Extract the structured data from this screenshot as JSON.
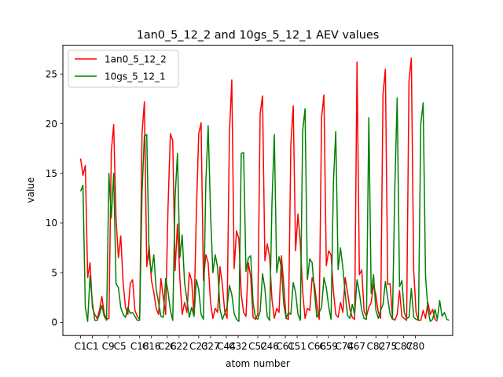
{
  "chart_data": {
    "type": "line",
    "title": "1an0_5_12_2 and 10gs_5_12_1 AEV values",
    "xlabel": "atom number",
    "ylabel": "value",
    "xlim": [
      -4.5,
      94.5
    ],
    "ylim": [
      -1.33,
      27.9
    ],
    "yticks": [
      0,
      5,
      10,
      15,
      20,
      25
    ],
    "xtick_labels": [
      "C1",
      "C1",
      "C9",
      "C5",
      "C18",
      "C16",
      "C26",
      "C22",
      "C23",
      "C27",
      "C44",
      "C32",
      "C52",
      "C46",
      "C61",
      "C51",
      "C66",
      "C59",
      "C74",
      "C67",
      "C82",
      "C75",
      "C87",
      "C80"
    ],
    "xtick_positions": [
      0,
      3,
      7,
      10,
      15,
      18,
      22,
      25,
      30,
      33,
      37,
      40,
      45,
      48,
      52,
      55,
      60,
      63,
      67,
      70,
      75,
      78,
      82,
      85
    ],
    "legend_position": "upper left",
    "grid": false,
    "series": [
      {
        "name": "1an0_5_12_2",
        "color": "#ff0000",
        "values": [
          16.5,
          14.8,
          15.8,
          4.5,
          6.0,
          1.5,
          0.8,
          0.4,
          1.2,
          2.6,
          0.9,
          0.3,
          0.4,
          17.2,
          19.9,
          10.5,
          6.5,
          8.7,
          4.0,
          1.5,
          0.8,
          3.9,
          4.3,
          1.2,
          0.6,
          0.3,
          19.0,
          22.2,
          5.6,
          7.7,
          4.2,
          3.0,
          1.4,
          0.8,
          4.4,
          2.5,
          0.8,
          11.5,
          19.0,
          18.3,
          5.2,
          9.9,
          4.5,
          0.8,
          2.0,
          1.0,
          5.0,
          4.2,
          0.6,
          11.0,
          19.0,
          20.1,
          4.2,
          6.8,
          6.0,
          2.0,
          0.4,
          1.4,
          1.0,
          5.6,
          3.8,
          1.1,
          0.4,
          19.1,
          24.4,
          5.4,
          9.2,
          8.4,
          2.8,
          1.0,
          0.6,
          6.0,
          4.6,
          0.5,
          0.3,
          0.8,
          21.0,
          22.8,
          6.2,
          7.9,
          6.6,
          2.3,
          0.4,
          1.4,
          1.0,
          6.7,
          3.8,
          0.4,
          0.3,
          18.0,
          21.8,
          7.2,
          10.9,
          8.0,
          3.1,
          0.4,
          1.4,
          1.2,
          4.5,
          3.8,
          1.8,
          0.3,
          20.6,
          22.9,
          5.7,
          7.2,
          6.8,
          3.2,
          0.8,
          0.5,
          2.0,
          1.0,
          4.5,
          3.0,
          1.3,
          0.5,
          0.3,
          26.2,
          4.8,
          5.3,
          1.1,
          0.6,
          1.5,
          2.0,
          3.8,
          2.7,
          1.0,
          0.4,
          23.0,
          25.5,
          3.8,
          3.9,
          0.4,
          0.2,
          0.8,
          3.2,
          0.6,
          0.4,
          0.2,
          24.3,
          26.6,
          5.2,
          1.0,
          0.2,
          0.2,
          1.2,
          0.4,
          2.0,
          0.8,
          1.3,
          0.3,
          0.1
        ],
        "x_step": 0.6
      },
      {
        "name": "10gs_5_12_1",
        "color": "#008000",
        "values": [
          13.2,
          13.8,
          1.5,
          0.1,
          4.7,
          2.0,
          0.2,
          0.2,
          0.8,
          1.7,
          0.6,
          0.2,
          15.0,
          10.5,
          15.0,
          3.9,
          3.5,
          1.5,
          0.8,
          0.5,
          1.5,
          0.9,
          1.0,
          0.6,
          0.2,
          0.2,
          13.0,
          18.8,
          18.9,
          6.5,
          5.0,
          6.8,
          3.3,
          2.0,
          0.6,
          0.5,
          4.4,
          3.1,
          1.2,
          0.2,
          12.6,
          17.0,
          6.5,
          8.8,
          4.0,
          2.3,
          0.5,
          1.5,
          0.6,
          4.3,
          3.3,
          0.8,
          0.3,
          14.0,
          19.8,
          11.0,
          5.0,
          6.8,
          5.5,
          1.3,
          0.3,
          0.9,
          1.5,
          3.7,
          2.8,
          0.9,
          0.3,
          0.1,
          17.0,
          17.1,
          5.1,
          6.5,
          6.7,
          2.0,
          0.5,
          0.3,
          1.1,
          4.9,
          3.4,
          0.6,
          0.2,
          12.0,
          18.9,
          5.0,
          6.6,
          5.5,
          1.8,
          0.4,
          1.0,
          0.8,
          4.0,
          3.0,
          0.8,
          0.2,
          19.3,
          21.5,
          4.3,
          6.4,
          6.0,
          3.0,
          0.5,
          1.0,
          1.5,
          4.5,
          3.5,
          1.6,
          0.3,
          14.0,
          19.2,
          5.3,
          7.5,
          5.5,
          2.9,
          0.7,
          0.4,
          1.8,
          0.8,
          4.3,
          3.0,
          1.2,
          0.4,
          0.3,
          20.6,
          2.9,
          4.8,
          1.2,
          0.4,
          1.2,
          1.8,
          4.1,
          2.4,
          0.8,
          0.3,
          13.5,
          22.6,
          3.6,
          4.2,
          1.0,
          0.4,
          0.5,
          3.4,
          0.5,
          0.3,
          0.2,
          20.0,
          22.1,
          4.7,
          1.3,
          0.1,
          0.3,
          1.3,
          0.3,
          2.2,
          0.6,
          1.0,
          0.3,
          0.2
        ],
        "x_step": 0.6
      }
    ]
  }
}
